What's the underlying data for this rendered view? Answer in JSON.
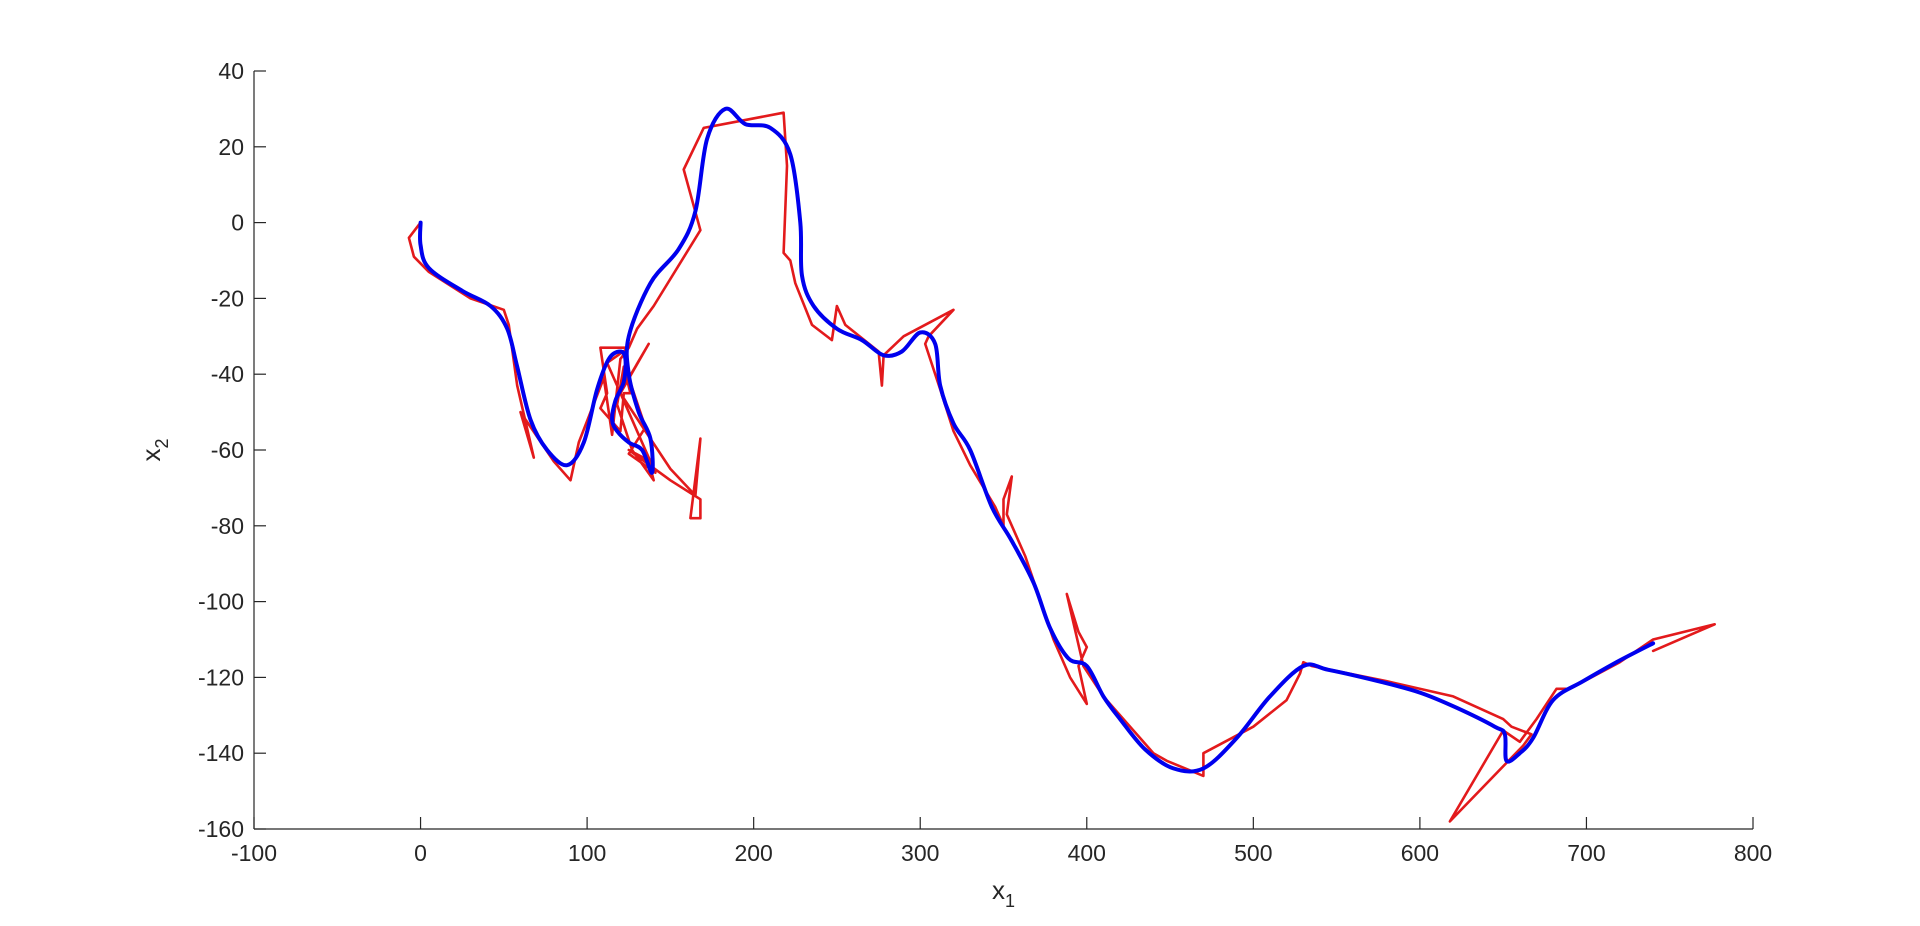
{
  "chart_data": {
    "type": "line",
    "title": "",
    "xlabel": "x",
    "xlabel_sub": "1",
    "ylabel": "x",
    "ylabel_sub": "2",
    "xlim": [
      -100,
      800
    ],
    "ylim": [
      -160,
      40
    ],
    "xticks": [
      -100,
      0,
      100,
      200,
      300,
      400,
      500,
      600,
      700,
      800
    ],
    "yticks": [
      -160,
      -140,
      -120,
      -100,
      -80,
      -60,
      -40,
      -20,
      0,
      20,
      40
    ],
    "grid": false,
    "legend": "none",
    "series": [
      {
        "color": "#e31a1c",
        "smooth": false,
        "points": [
          [
            0,
            0
          ],
          [
            -7,
            -4
          ],
          [
            -4,
            -9
          ],
          [
            5,
            -13
          ],
          [
            30,
            -20
          ],
          [
            50,
            -23
          ],
          [
            53,
            -27
          ],
          [
            58,
            -43
          ],
          [
            68,
            -62
          ],
          [
            60,
            -50
          ],
          [
            80,
            -63
          ],
          [
            90,
            -68
          ],
          [
            95,
            -58
          ],
          [
            110,
            -41
          ],
          [
            115,
            -56
          ],
          [
            120,
            -36
          ],
          [
            125,
            -33
          ],
          [
            108,
            -33
          ],
          [
            112,
            -45
          ],
          [
            108,
            -49
          ],
          [
            120,
            -55
          ],
          [
            122,
            -45
          ],
          [
            126,
            -45
          ],
          [
            122,
            -38
          ],
          [
            118,
            -48
          ],
          [
            127,
            -60
          ],
          [
            140,
            -68
          ],
          [
            137,
            -63
          ],
          [
            141,
            -66
          ],
          [
            125,
            -61
          ],
          [
            135,
            -54
          ],
          [
            125,
            -41
          ],
          [
            137,
            -32
          ],
          [
            120,
            -45
          ],
          [
            135,
            -55
          ],
          [
            150,
            -65
          ],
          [
            165,
            -72
          ],
          [
            168,
            -57
          ],
          [
            162,
            -78
          ],
          [
            168,
            -78
          ],
          [
            168,
            -73
          ],
          [
            150,
            -68
          ],
          [
            125,
            -60
          ],
          [
            138,
            -63
          ],
          [
            112,
            -37
          ],
          [
            125,
            -33
          ],
          [
            130,
            -28
          ],
          [
            140,
            -22
          ],
          [
            168,
            -2
          ],
          [
            158,
            14
          ],
          [
            170,
            25
          ],
          [
            218,
            29
          ],
          [
            220,
            15
          ],
          [
            218,
            -8
          ],
          [
            222,
            -10
          ],
          [
            225,
            -16
          ],
          [
            235,
            -27
          ],
          [
            247,
            -31
          ],
          [
            250,
            -22
          ],
          [
            255,
            -27
          ],
          [
            275,
            -34
          ],
          [
            277,
            -43
          ],
          [
            278,
            -35
          ],
          [
            290,
            -30
          ],
          [
            320,
            -23
          ],
          [
            305,
            -30
          ],
          [
            303,
            -32
          ],
          [
            312,
            -44
          ],
          [
            320,
            -55
          ],
          [
            330,
            -64
          ],
          [
            345,
            -75
          ],
          [
            350,
            -80
          ],
          [
            350,
            -73
          ],
          [
            355,
            -67
          ],
          [
            352,
            -77
          ],
          [
            363,
            -88
          ],
          [
            370,
            -97
          ],
          [
            380,
            -110
          ],
          [
            390,
            -120
          ],
          [
            400,
            -127
          ],
          [
            395,
            -117
          ],
          [
            400,
            -112
          ],
          [
            395,
            -108
          ],
          [
            388,
            -98
          ],
          [
            398,
            -117
          ],
          [
            410,
            -125
          ],
          [
            420,
            -130
          ],
          [
            440,
            -140
          ],
          [
            448,
            -142
          ],
          [
            470,
            -146
          ],
          [
            470,
            -140
          ],
          [
            500,
            -133
          ],
          [
            520,
            -126
          ],
          [
            528,
            -119
          ],
          [
            530,
            -116
          ],
          [
            535,
            -117
          ],
          [
            580,
            -121
          ],
          [
            620,
            -125
          ],
          [
            650,
            -131
          ],
          [
            655,
            -133
          ],
          [
            667,
            -135
          ],
          [
            662,
            -138
          ],
          [
            618,
            -158
          ],
          [
            650,
            -134
          ],
          [
            660,
            -137
          ],
          [
            670,
            -131
          ],
          [
            682,
            -123
          ],
          [
            690,
            -123
          ],
          [
            720,
            -116
          ],
          [
            740,
            -110
          ],
          [
            777,
            -106
          ],
          [
            740,
            -113
          ]
        ]
      },
      {
        "color": "#0000ee",
        "smooth": true,
        "points": [
          [
            0,
            0
          ],
          [
            0,
            -6
          ],
          [
            5,
            -12
          ],
          [
            25,
            -18
          ],
          [
            42,
            -22
          ],
          [
            52,
            -28
          ],
          [
            58,
            -38
          ],
          [
            66,
            -52
          ],
          [
            76,
            -60
          ],
          [
            88,
            -64
          ],
          [
            98,
            -58
          ],
          [
            106,
            -44
          ],
          [
            113,
            -36
          ],
          [
            120,
            -34
          ],
          [
            123,
            -36
          ],
          [
            122,
            -42
          ],
          [
            117,
            -47
          ],
          [
            115,
            -52
          ],
          [
            118,
            -55
          ],
          [
            125,
            -58
          ],
          [
            133,
            -60
          ],
          [
            139,
            -66
          ],
          [
            138,
            -57
          ],
          [
            131,
            -50
          ],
          [
            125,
            -40
          ],
          [
            125,
            -30
          ],
          [
            138,
            -16
          ],
          [
            155,
            -7
          ],
          [
            165,
            3
          ],
          [
            172,
            22
          ],
          [
            183,
            30
          ],
          [
            195,
            26
          ],
          [
            210,
            25
          ],
          [
            222,
            18
          ],
          [
            228,
            0
          ],
          [
            229,
            -14
          ],
          [
            236,
            -22
          ],
          [
            250,
            -28
          ],
          [
            265,
            -31
          ],
          [
            278,
            -35
          ],
          [
            289,
            -34
          ],
          [
            300,
            -29
          ],
          [
            309,
            -32
          ],
          [
            312,
            -43
          ],
          [
            320,
            -53
          ],
          [
            330,
            -60
          ],
          [
            343,
            -75
          ],
          [
            355,
            -84
          ],
          [
            368,
            -95
          ],
          [
            378,
            -107
          ],
          [
            389,
            -115
          ],
          [
            400,
            -117
          ],
          [
            410,
            -125
          ],
          [
            420,
            -131
          ],
          [
            435,
            -139
          ],
          [
            452,
            -144
          ],
          [
            470,
            -144
          ],
          [
            490,
            -136
          ],
          [
            510,
            -125
          ],
          [
            530,
            -117
          ],
          [
            545,
            -118
          ],
          [
            575,
            -121
          ],
          [
            600,
            -124
          ],
          [
            622,
            -128
          ],
          [
            645,
            -133
          ],
          [
            651,
            -135
          ],
          [
            652,
            -142
          ],
          [
            660,
            -140
          ],
          [
            668,
            -136
          ],
          [
            680,
            -126
          ],
          [
            698,
            -121
          ],
          [
            718,
            -116
          ],
          [
            740,
            -111
          ]
        ]
      }
    ]
  }
}
